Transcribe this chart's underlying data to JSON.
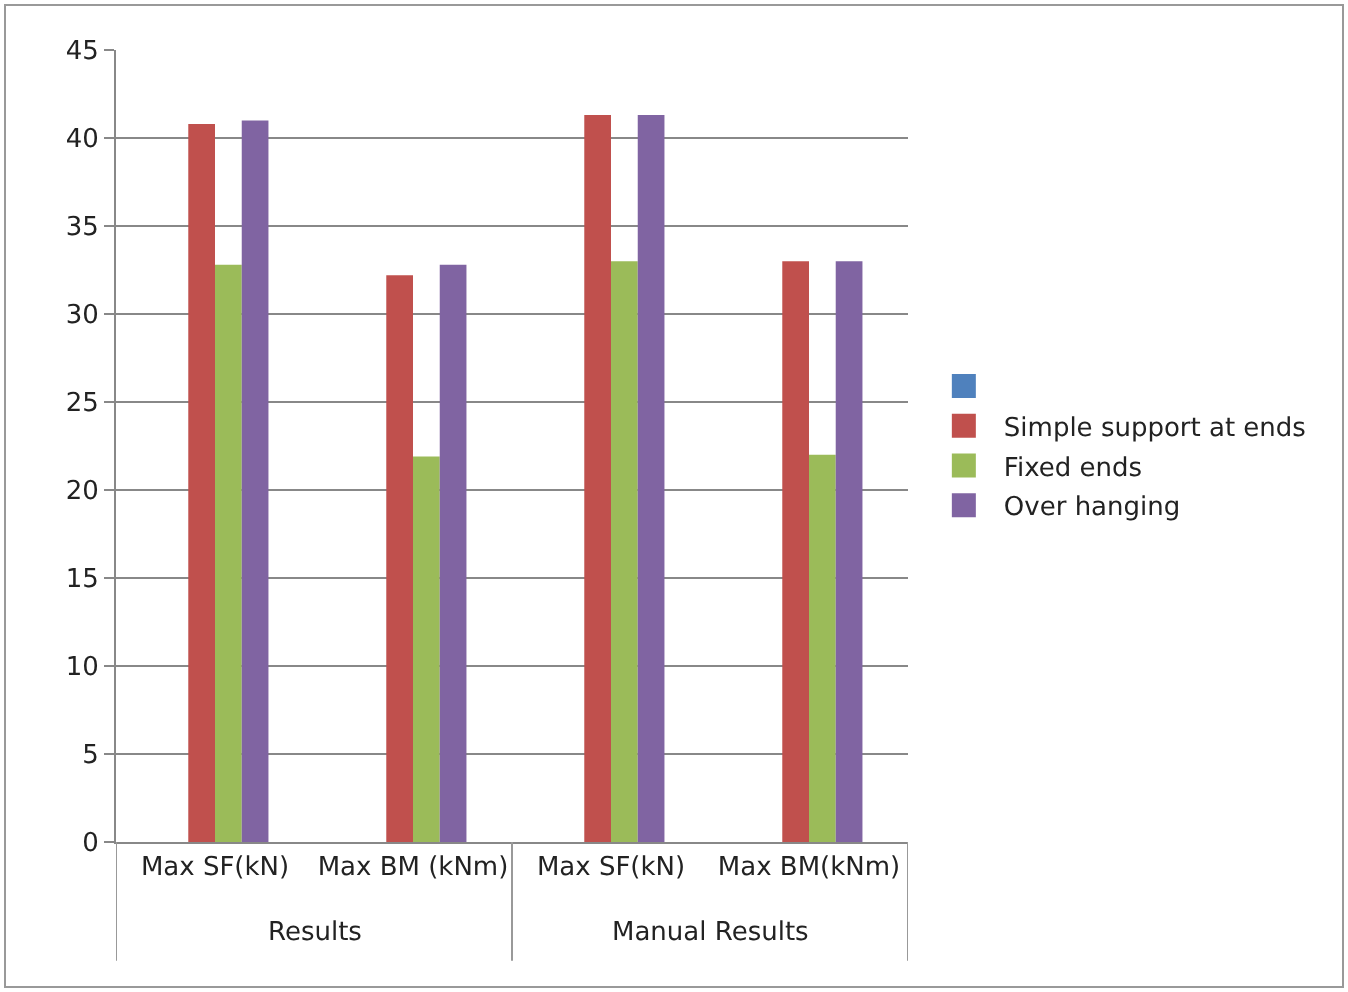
{
  "chart_data": {
    "type": "bar",
    "categories": [
      "Max SF(kN)",
      "Max BM (kNm)",
      "Max SF(kN)",
      "Max BM(kNm)"
    ],
    "series": [
      {
        "color": "#4f81bd",
        "values": [
          null,
          null,
          null,
          null
        ]
      },
      {
        "name": "Simple support at ends",
        "color": "#c0504d",
        "values": [
          40.8,
          32.2,
          41.3,
          33.0
        ]
      },
      {
        "name": "Fixed ends",
        "color": "#9bbb59",
        "values": [
          32.8,
          21.9,
          33.0,
          22.0
        ]
      },
      {
        "name": "Over hanging",
        "color": "#8064a2",
        "values": [
          41.0,
          32.8,
          41.3,
          33.0
        ]
      }
    ],
    "annotations": [
      "Results",
      "Manual Results"
    ],
    "ylim": [
      0,
      45
    ],
    "yticks": [
      0,
      5,
      10,
      15,
      20,
      25,
      30,
      35,
      40,
      45
    ],
    "grid": "y",
    "legend": "right"
  }
}
